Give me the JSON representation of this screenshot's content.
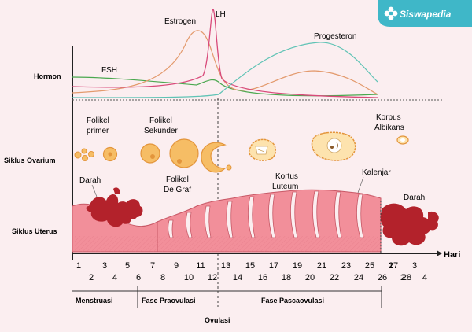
{
  "brand": {
    "name": "Siswapedia",
    "color": "#3fb7c8",
    "icon": "flower-icon"
  },
  "rows": {
    "hormon": "Hormon",
    "ovarium": "Siklus Ovarium",
    "uterus": "Siklus Uterus"
  },
  "hormones": {
    "fsh": {
      "label": "FSH",
      "color": "#4aa84f"
    },
    "estrogen": {
      "label": "Estrogen",
      "color": "#e39a6d"
    },
    "lh": {
      "label": "LH",
      "color": "#d84a7a"
    },
    "progesteron": {
      "label": "Progesteron",
      "color": "#5fc3b5"
    }
  },
  "ovary": {
    "folikel_primer": [
      "Folikel",
      "primer"
    ],
    "folikel_sekunder": [
      "Folikel",
      "Sekunder"
    ],
    "folikel_de_graf": [
      "Folikel",
      "De Graf"
    ],
    "kortus_luteum": [
      "Kortus",
      "Luteum"
    ],
    "korpus_albikans": [
      "Korpus",
      "Albikans"
    ],
    "follicle_color": "#f6bd65",
    "follicle_stroke": "#e3953b"
  },
  "uterus": {
    "darah_left": "Darah",
    "darah_right": "Darah",
    "kalenjar": "Kalenjar",
    "tissue_color": "#f28f9a",
    "blood_color": "#b3222b"
  },
  "axis": {
    "unit": "Hari",
    "days_top": [
      "1",
      "3",
      "5",
      "7",
      "9",
      "11",
      "13",
      "15",
      "17",
      "19",
      "21",
      "23",
      "25",
      "27",
      "1",
      "3"
    ],
    "days_bottom": [
      "2",
      "4",
      "6",
      "8",
      "10",
      "12",
      "14",
      "16",
      "18",
      "20",
      "22",
      "24",
      "26",
      "28",
      "2",
      "4"
    ]
  },
  "phases": {
    "menstruasi": "Menstruasi",
    "praovulasi": "Fase Praovulasi",
    "pascaovulasi": "Fase Pascaovulasi",
    "ovulasi": "Ovulasi"
  }
}
